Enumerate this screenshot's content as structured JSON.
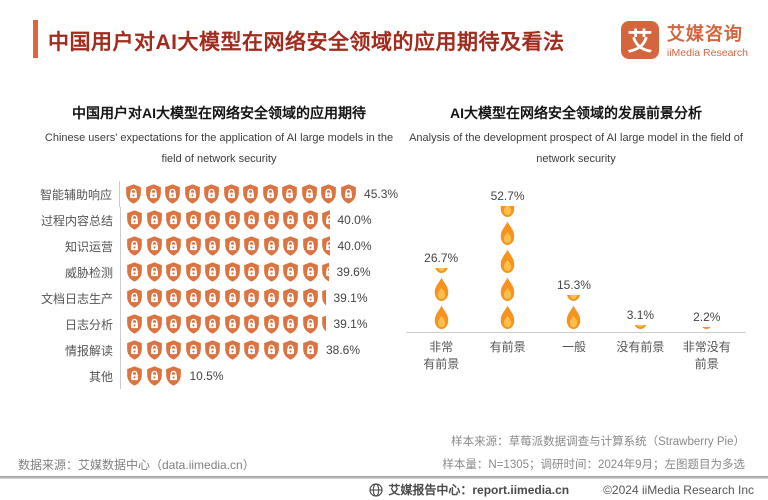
{
  "header": {
    "title": "中国用户对AI大模型在网络安全领域的应用期待及看法",
    "logo": {
      "glyph": "艾",
      "brand_cn": "艾媒咨询",
      "brand_en": "iiMedia Research"
    }
  },
  "colors": {
    "accent_bar": "#E2643C",
    "title_red": "#A02C1E",
    "logo_orange": "#D4663E",
    "shield_orange": "#DB7440",
    "flame_outer": "#F6921E",
    "flame_inner": "#FDBE4B",
    "axis_gray": "#cccccc"
  },
  "chart_data": [
    {
      "type": "bar",
      "orientation": "horizontal",
      "style": "pictogram-shield-lock",
      "title": "中国用户对AI大模型在网络安全领域的应用期待",
      "subtitle": "Chinese users' expectations for the application of AI large models in the field of network security",
      "categories": [
        "智能辅助响应",
        "过程内容总结",
        "知识运营",
        "威胁检测",
        "文档日志生产",
        "日志分析",
        "情报解读",
        "其他"
      ],
      "values": [
        45.3,
        40.0,
        40.0,
        39.6,
        39.1,
        39.1,
        38.6,
        10.5
      ],
      "value_labels": [
        "45.3%",
        "40.0%",
        "40.0%",
        "39.6%",
        "39.1%",
        "39.1%",
        "38.6%",
        "10.5%"
      ],
      "icon_counts": [
        12,
        10.55,
        10.55,
        10.45,
        10.3,
        10.3,
        10,
        3
      ],
      "icon": "shield-lock",
      "legend": "none",
      "xlim": [
        0,
        50
      ]
    },
    {
      "type": "bar",
      "orientation": "vertical",
      "style": "pictogram-flame",
      "title": "AI大模型在网络安全领域的发展前景分析",
      "subtitle": "Analysis of the development prospect of AI large model in the field of network security",
      "categories": [
        "非常有前景",
        "有前景",
        "一般",
        "没有前景",
        "非常没有前景"
      ],
      "category_labels": [
        "非常\n有前景",
        "有前景",
        "一般",
        "没有前景",
        "非常没有\n前景"
      ],
      "values": [
        26.7,
        52.7,
        15.3,
        3.1,
        2.2
      ],
      "value_labels": [
        "26.7%",
        "52.7%",
        "15.3%",
        "3.1%",
        "2.2%"
      ],
      "unit_per_icon_pct": 11.7,
      "icon": "flame",
      "legend": "none",
      "ylim": [
        0,
        55
      ]
    }
  ],
  "sources": {
    "left": "数据来源：艾媒数据中心（data.iimedia.cn）",
    "right_line1": "样本来源：草莓派数据调查与计算系统（Strawberry Pie）",
    "right_line2": "样本量：N=1305；调研时间：2024年9月；左图题目为多选"
  },
  "footer": {
    "report_center": "艾媒报告中心：report.iimedia.cn",
    "copyright": "©2024  iiMedia Research  Inc"
  }
}
